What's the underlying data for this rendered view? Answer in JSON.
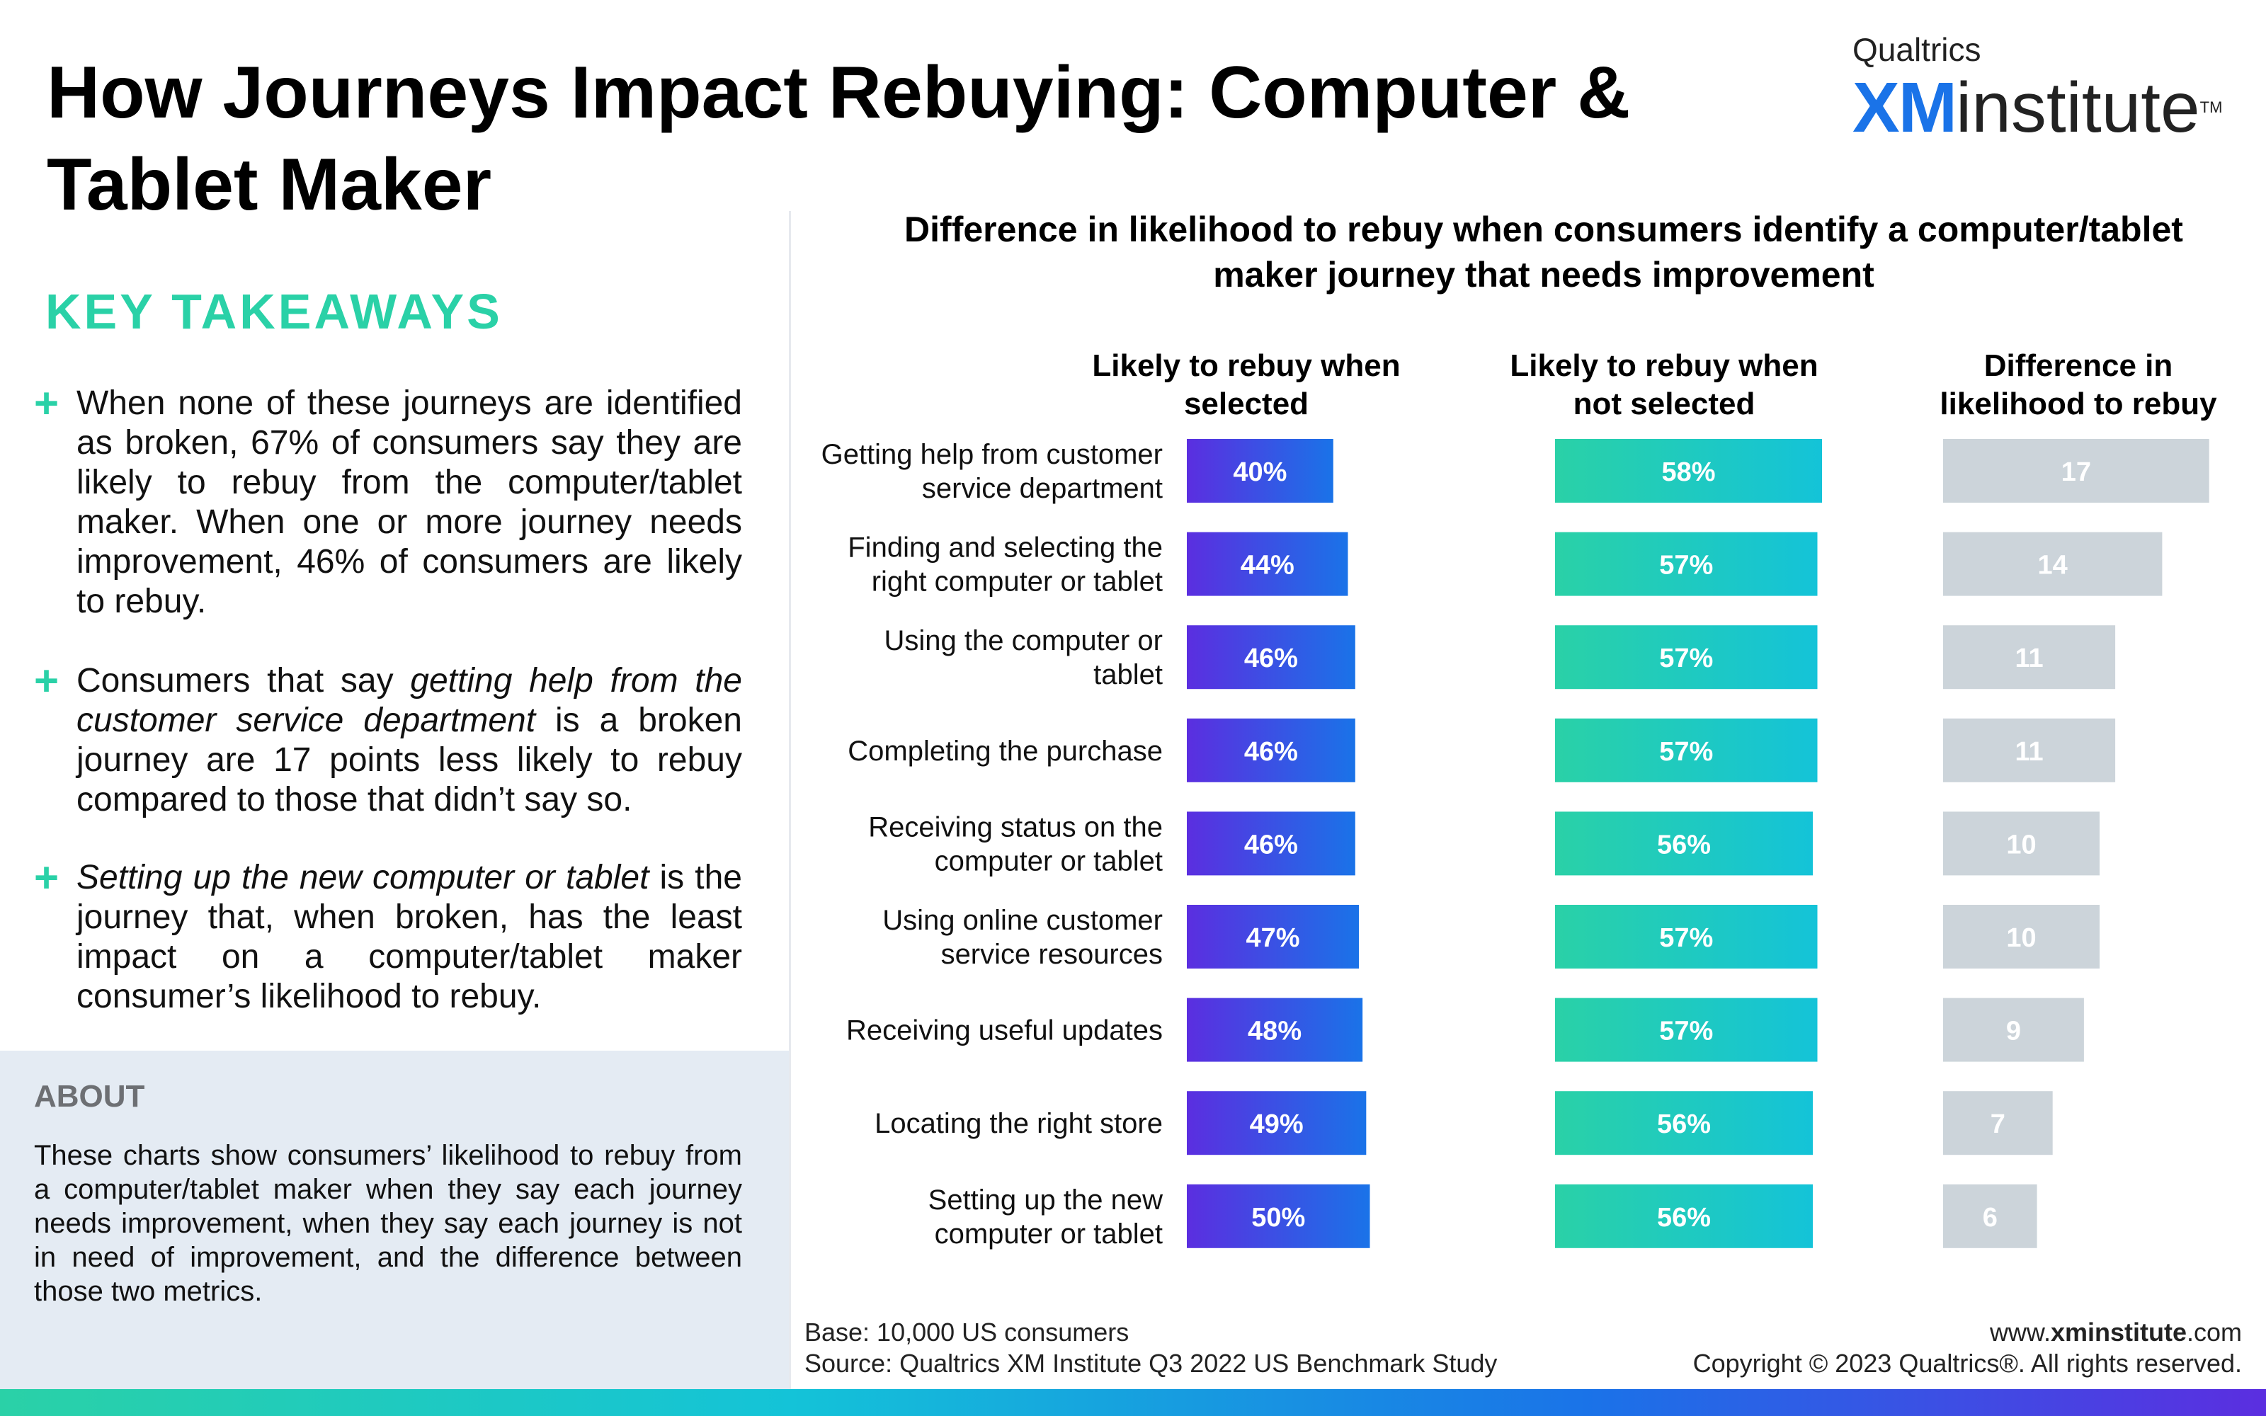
{
  "title": "How Journeys Impact Rebuying: Computer & Tablet Maker",
  "brand": {
    "company": "Qualtrics",
    "xm": "XM",
    "institute": "institute",
    "tm": "TM"
  },
  "key_takeaways": {
    "heading": "KEY TAKEAWAYS",
    "plus": "+",
    "item1": "When none of these journeys are identified as broken, 67% of consumers say they are likely to rebuy from the computer/tablet maker. When one or more journey needs improvement, 46% of consumers are likely to rebuy.",
    "item2_pre": "Consumers that say ",
    "item2_em": "getting help from the customer service department",
    "item2_post": " is a broken journey are 17 points less likely to rebuy compared to those that didn’t say so.",
    "item3_em": "Setting up the new computer or tablet",
    "item3_post": " is the journey that, when broken, has the least impact on a computer/tablet maker consumer’s likelihood to rebuy."
  },
  "about": {
    "heading": "ABOUT",
    "text": "These charts show consumers’ likelihood to rebuy from a computer/tablet maker when they say each journey needs improvement, when they say each journey is not in need of improvement, and the difference between those two metrics."
  },
  "chart_data": {
    "type": "bar",
    "orientation": "horizontal",
    "title": "Difference in likelihood to rebuy when consumers identify a computer/tablet maker journey that needs improvement",
    "categories": [
      [
        "Getting help from customer",
        "service department"
      ],
      [
        "Finding and selecting the",
        "right computer or tablet"
      ],
      [
        "Using the computer or",
        "tablet"
      ],
      [
        "Completing the purchase"
      ],
      [
        "Receiving status on the",
        "computer or tablet"
      ],
      [
        "Using online customer",
        "service resources"
      ],
      [
        "Receiving useful updates"
      ],
      [
        "Locating the right store"
      ],
      [
        "Setting up the new",
        "computer or tablet"
      ]
    ],
    "series": [
      {
        "name": "Likely to rebuy when selected",
        "header": [
          "Likely to rebuy when",
          "selected"
        ],
        "values": [
          40,
          44,
          46,
          46,
          46,
          47,
          48,
          49,
          50
        ],
        "labels": [
          "40%",
          "44%",
          "46%",
          "46%",
          "46%",
          "47%",
          "48%",
          "49%",
          "50%"
        ],
        "colors": [
          "#5b2ee0",
          "#1a73e8"
        ]
      },
      {
        "name": "Likely to rebuy when not selected",
        "header": [
          "Likely to rebuy when",
          "not selected"
        ],
        "values": [
          58,
          57,
          57,
          57,
          56,
          57,
          57,
          56,
          56
        ],
        "labels": [
          "58%",
          "57%",
          "57%",
          "57%",
          "56%",
          "57%",
          "57%",
          "56%",
          "56%"
        ],
        "colors": [
          "#2ad1a7",
          "#14c3d8"
        ]
      },
      {
        "name": "Difference in likelihood to rebuy",
        "header": [
          "Difference in",
          "likelihood to rebuy"
        ],
        "values": [
          17,
          14,
          11,
          11,
          10,
          10,
          9,
          7,
          6
        ],
        "labels": [
          "17",
          "14",
          "11",
          "11",
          "10",
          "10",
          "9",
          "7",
          "6"
        ],
        "colors": [
          "#ccd4da",
          "#ccd4da"
        ]
      }
    ]
  },
  "footer": {
    "base": "Base: 10,000 US consumers",
    "source": "Source: Qualtrics XM Institute Q3 2022 US Benchmark Study",
    "url_pre": "www.",
    "url_bold": "xminstitute",
    "url_post": ".com",
    "copyright": "Copyright © 2023 Qualtrics®. All rights reserved."
  }
}
